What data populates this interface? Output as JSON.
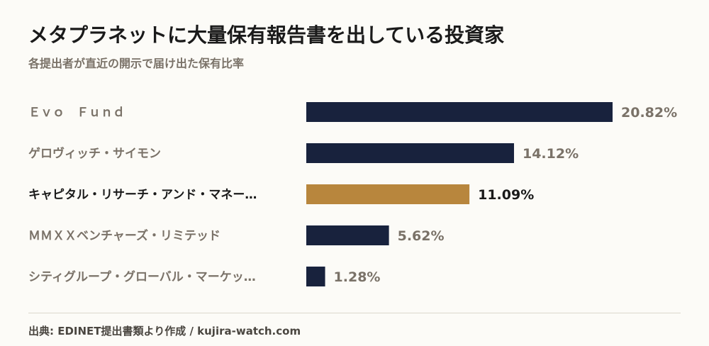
{
  "header": {
    "title": "メタプラネットに大量保有報告書を出している投資家",
    "subtitle": "各提出者が直近の開示で届け出た保有比率"
  },
  "chart_data": {
    "type": "bar",
    "orientation": "horizontal",
    "categories": [
      "Ｅｖｏ　Ｆｕｎｄ",
      "ゲロヴィッチ・サイモン",
      "キャピタル・リサーチ・アンド・マネー…",
      "ＭＭＸＸベンチャーズ・リミテッド",
      "シティグループ・グローバル・マーケッ…"
    ],
    "values": [
      20.82,
      14.12,
      11.09,
      5.62,
      1.28
    ],
    "value_labels": [
      "20.82%",
      "14.12%",
      "11.09%",
      "5.62%",
      "1.28%"
    ],
    "highlight_index": 2,
    "xlim": [
      0,
      20.82
    ],
    "grid": false,
    "legend": "none",
    "colors": {
      "bar": "#18223d",
      "highlight": "#b8863d",
      "label": "#7a7268",
      "label_highlight": "#1a1a1a"
    }
  },
  "footer": {
    "source": "出典: EDINET提出書類より作成 / kujira-watch.com"
  }
}
